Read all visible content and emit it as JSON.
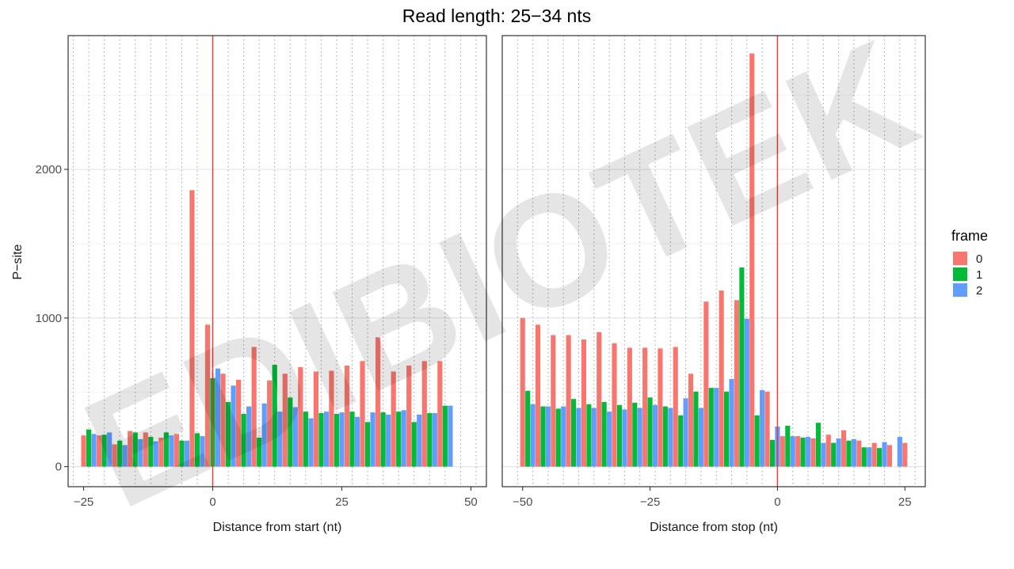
{
  "chart_data": {
    "type": "bar",
    "title": "Read length: 25−34 nts",
    "ylabel": "P−site",
    "legend": {
      "title": "frame",
      "placement": "right",
      "entries": [
        {
          "label": "0",
          "color": "#F8766D"
        },
        {
          "label": "1",
          "color": "#00BA38"
        },
        {
          "label": "2",
          "color": "#619CFF"
        }
      ]
    },
    "ylim": [
      -135,
      2900
    ],
    "yticks": [
      0,
      1000,
      2000
    ],
    "ytick_labels": [
      "0",
      "1000",
      "2000"
    ],
    "grid": true,
    "watermark": "EDIBIOTEK",
    "panels": [
      {
        "xlabel": "Distance from start (nt)",
        "xlim": [
          -28,
          53
        ],
        "xticks": [
          -25,
          0,
          25,
          50
        ],
        "xtick_labels": [
          "−25",
          "0",
          "25",
          "50"
        ],
        "reference_line": 0,
        "x_start": -25,
        "series": [
          {
            "frame": "0",
            "values": [
              210,
              210,
              150,
              240,
              230,
              195,
              220,
              1860,
              955,
              625,
              585,
              805,
              580,
              625,
              670,
              640,
              645,
              680,
              710,
              870,
              640,
              680,
              710,
              710
            ]
          },
          {
            "frame": "1",
            "values": [
              250,
              215,
              175,
              230,
              200,
              230,
              175,
              225,
              595,
              435,
              355,
              195,
              685,
              465,
              370,
              360,
              355,
              370,
              300,
              365,
              370,
              300,
              360,
              410
            ]
          },
          {
            "frame": "2",
            "values": [
              220,
              230,
              145,
              185,
              170,
              210,
              175,
              205,
              660,
              545,
              405,
              425,
              370,
              400,
              325,
              370,
              365,
              335,
              365,
              350,
              380,
              350,
              360,
              410
            ]
          }
        ]
      },
      {
        "xlabel": "Distance from stop (nt)",
        "xlim": [
          -54,
          29
        ],
        "xticks": [
          -50,
          -25,
          0,
          25
        ],
        "xtick_labels": [
          "−50",
          "−25",
          "0",
          "25"
        ],
        "reference_line": 0,
        "x_start": -50,
        "series": [
          {
            "frame": "0",
            "values": [
              1000,
              955,
              885,
              885,
              855,
              905,
              830,
              800,
              800,
              795,
              805,
              625,
              1110,
              1185,
              1120,
              2780,
              505,
              205,
              205,
              190,
              215,
              245,
              175,
              160,
              145,
              160
            ]
          },
          {
            "frame": "1",
            "values": [
              510,
              405,
              390,
              455,
              420,
              435,
              415,
              430,
              465,
              405,
              345,
              505,
              530,
              505,
              1340,
              345,
              180,
              275,
              195,
              295,
              160,
              175,
              130,
              125
            ]
          },
          {
            "frame": "2",
            "values": [
              420,
              405,
              405,
              395,
              395,
              370,
              385,
              395,
              415,
              395,
              460,
              395,
              530,
              590,
              995,
              515,
              270,
              205,
              200,
              160,
              190,
              185,
              130,
              165,
              200
            ]
          }
        ]
      }
    ]
  }
}
